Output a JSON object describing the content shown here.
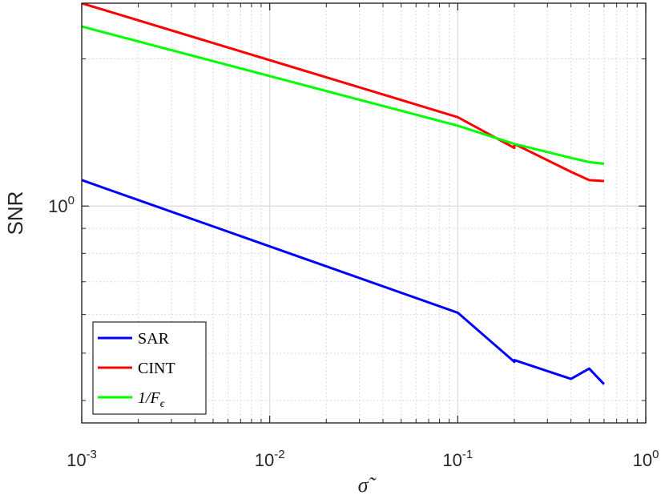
{
  "chart_data": {
    "type": "line",
    "xscale": "log",
    "yscale": "log",
    "xlabel": "σ̃",
    "ylabel": "SNR",
    "xlim": [
      0.001,
      1
    ],
    "ylim": [
      0.36,
      2.6
    ],
    "grid": true,
    "minor_grid": true,
    "legend_position": "bottom-left",
    "x_ticks": [
      {
        "base": "10",
        "exp": "-3"
      },
      {
        "base": "10",
        "exp": "-2"
      },
      {
        "base": "10",
        "exp": "-1"
      },
      {
        "base": "10",
        "exp": "0"
      }
    ],
    "y_ticks": [
      {
        "base": "10",
        "exp": "0"
      }
    ],
    "series": [
      {
        "name": "SAR",
        "color": "#0000ff",
        "x": [
          0.001,
          0.1,
          0.2,
          0.2,
          0.4,
          0.5,
          0.6
        ],
        "y": [
          1.13,
          0.605,
          0.48,
          0.484,
          0.443,
          0.465,
          0.432
        ]
      },
      {
        "name": "CINT",
        "color": "#ff0000",
        "x": [
          0.001,
          0.1,
          0.2,
          0.2,
          0.4,
          0.5,
          0.6
        ],
        "y": [
          2.6,
          1.52,
          1.315,
          1.34,
          1.175,
          1.13,
          1.125
        ]
      },
      {
        "name": "1/F",
        "name_subscript": "ϵ",
        "color": "#00ff00",
        "x": [
          0.001,
          0.1,
          0.2,
          0.4,
          0.5,
          0.6
        ],
        "y": [
          2.33,
          1.46,
          1.34,
          1.255,
          1.23,
          1.22
        ]
      }
    ]
  }
}
